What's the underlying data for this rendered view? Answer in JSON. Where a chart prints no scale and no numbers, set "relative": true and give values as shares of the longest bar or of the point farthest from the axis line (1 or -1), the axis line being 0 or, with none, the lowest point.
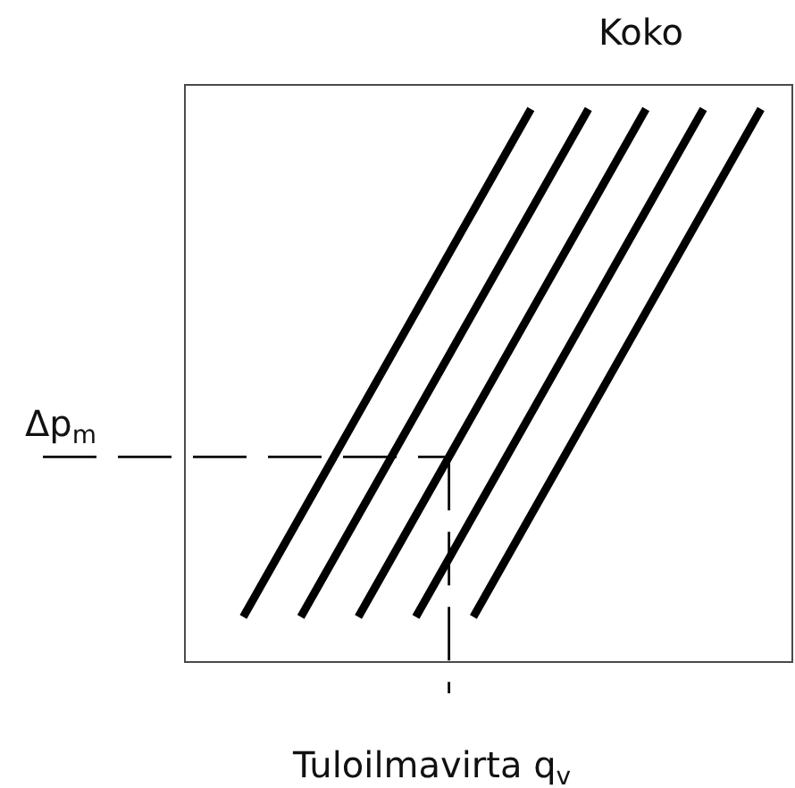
{
  "chart_data": {
    "type": "line",
    "relative": true,
    "xlabel": "Tuloilmavirta q$_{v}$",
    "ylabel": "Δp$_{m}$",
    "annotations": [
      "Koko"
    ],
    "categories": [
      null,
      null,
      null,
      null,
      null,
      null,
      null,
      null,
      null,
      null
    ],
    "series": [
      {
        "color": "#000000",
        "values": [
          0.08,
          0.264,
          0.448,
          0.632,
          0.816,
          1.0,
          null,
          null,
          null,
          null
        ]
      },
      {
        "color": "#000000",
        "values": [
          null,
          0.08,
          0.264,
          0.448,
          0.632,
          0.816,
          1.0,
          null,
          null,
          null
        ]
      },
      {
        "color": "#000000",
        "values": [
          null,
          null,
          0.08,
          0.264,
          0.448,
          0.632,
          0.816,
          1.0,
          null,
          null
        ]
      },
      {
        "color": "#000000",
        "values": [
          null,
          null,
          null,
          0.08,
          0.264,
          0.448,
          0.632,
          0.816,
          1.0,
          null
        ]
      },
      {
        "color": "#000000",
        "values": [
          null,
          null,
          null,
          null,
          0.08,
          0.264,
          0.448,
          0.632,
          0.816,
          1.0
        ]
      }
    ],
    "ref_lines": [
      {
        "axis": "y",
        "value": 0.37,
        "line_style": "dashed",
        "color": "#000000"
      }
    ],
    "marker": "none",
    "line_style": "solid"
  }
}
